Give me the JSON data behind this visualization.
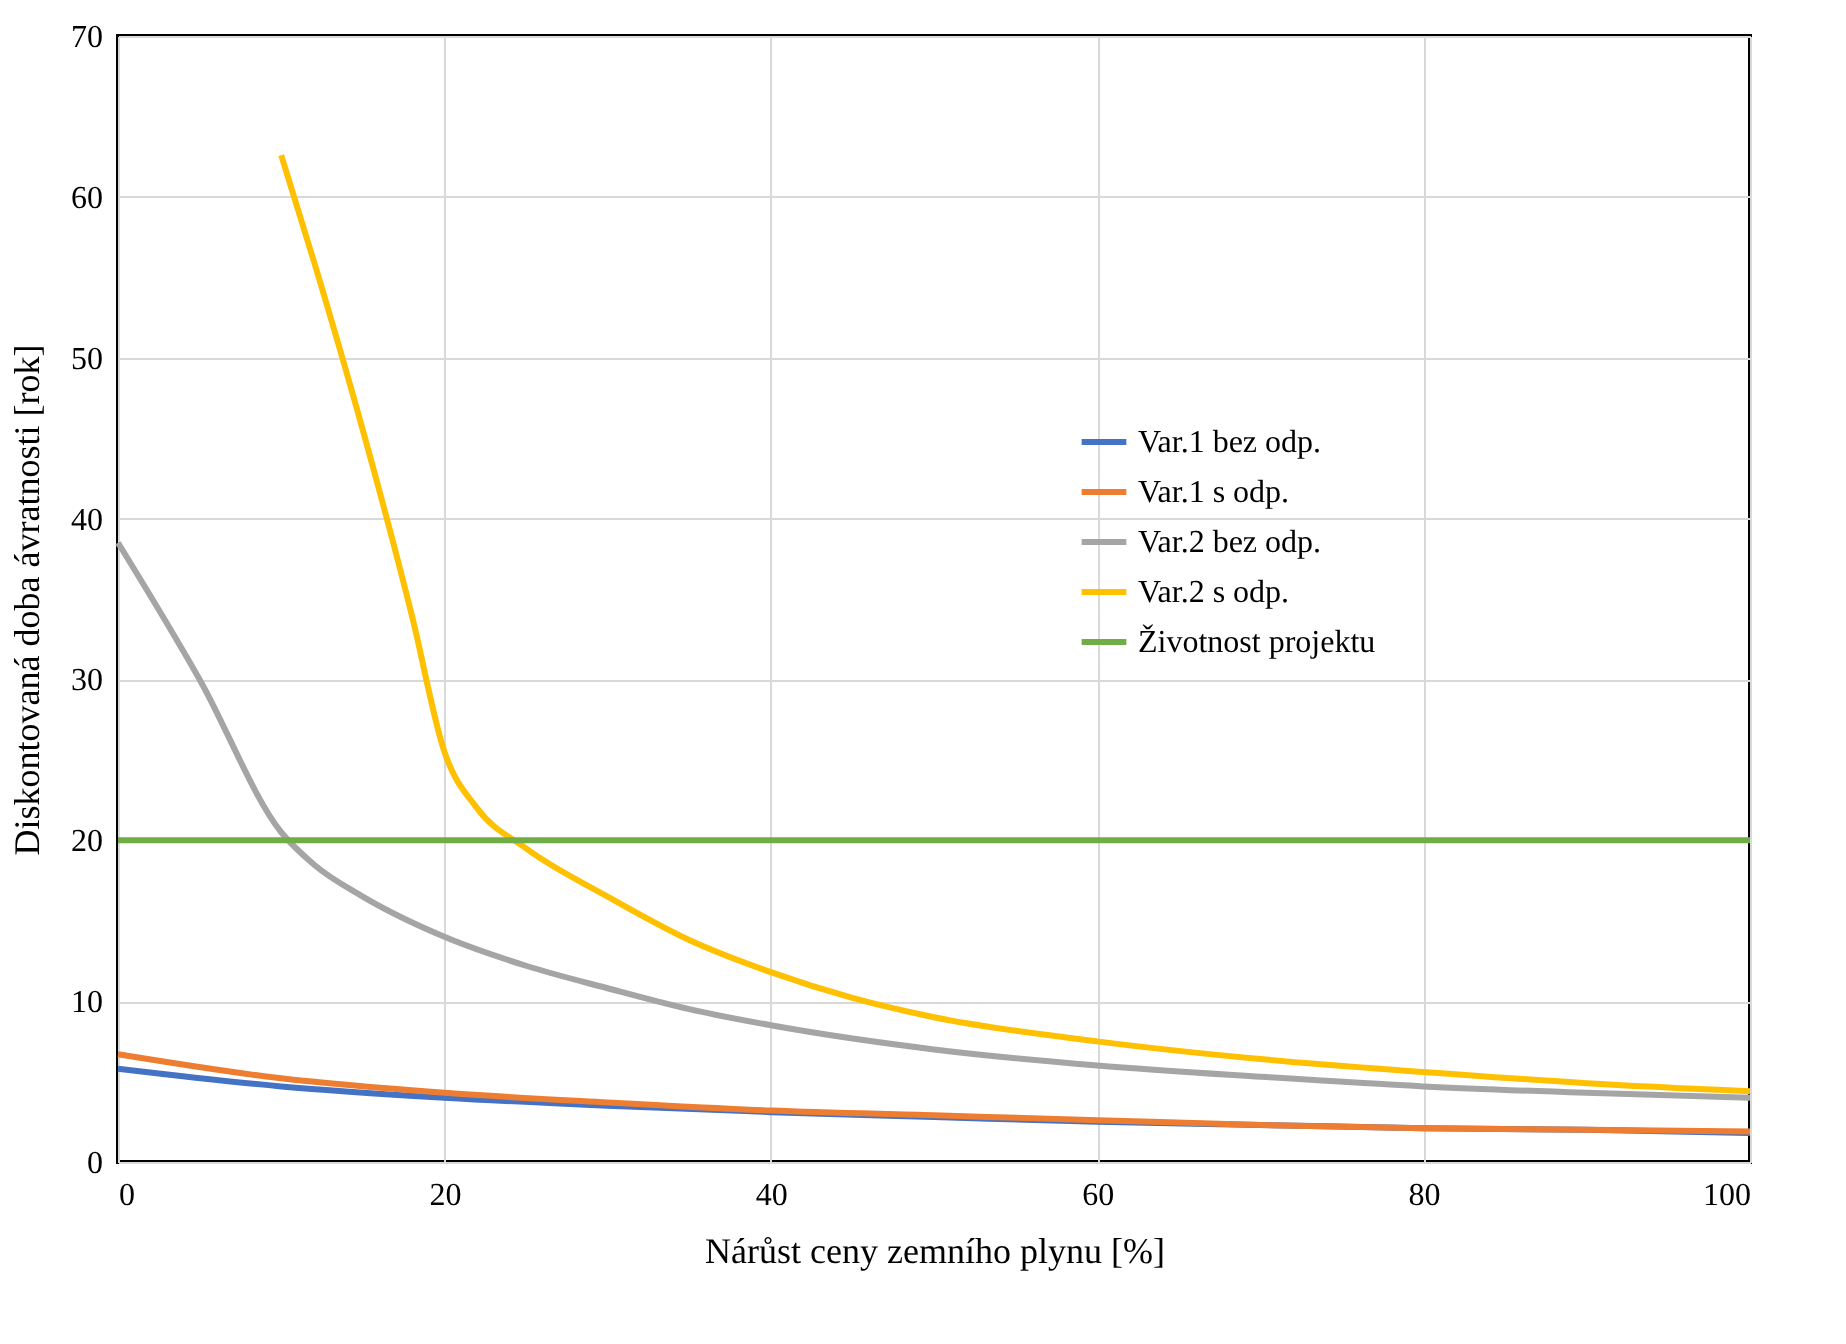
{
  "chart_data": {
    "type": "line",
    "xlabel": "Nárůst ceny zemního plynu [%]",
    "ylabel": "Diskontovaná doba ávratnosti [rok]",
    "xlim": [
      0,
      100
    ],
    "xticks": [
      0,
      20,
      40,
      60,
      80,
      100
    ],
    "ylim": [
      0,
      70
    ],
    "yticks": [
      0,
      10,
      20,
      30,
      40,
      50,
      60,
      70
    ],
    "grid": true,
    "legend": "right",
    "marker": "none",
    "line_style": "solid",
    "series": [
      {
        "name": "Var.1 bez odp.",
        "color": "#4472c4",
        "x": [
          0,
          10,
          20,
          30,
          40,
          50,
          60,
          70,
          80,
          90,
          100
        ],
        "values": [
          5.8,
          4.7,
          4.0,
          3.5,
          3.1,
          2.8,
          2.5,
          2.3,
          2.1,
          2.0,
          1.8
        ]
      },
      {
        "name": "Var.1 s odp.",
        "color": "#ed7d31",
        "x": [
          0,
          10,
          20,
          30,
          40,
          50,
          60,
          70,
          80,
          90,
          100
        ],
        "values": [
          6.7,
          5.2,
          4.3,
          3.7,
          3.2,
          2.9,
          2.6,
          2.3,
          2.1,
          2.0,
          1.9
        ]
      },
      {
        "name": "Var.2 bez odp.",
        "color": "#a5a5a5",
        "x": [
          0,
          5,
          10,
          12,
          15,
          20,
          25,
          30,
          35,
          40,
          50,
          60,
          70,
          80,
          90,
          100
        ],
        "values": [
          38.5,
          30,
          20.5,
          18.5,
          16.5,
          14,
          12.2,
          10.8,
          9.5,
          8.5,
          7.0,
          6.0,
          5.3,
          4.7,
          4.3,
          4.0
        ]
      },
      {
        "name": "Var.2 s odp.",
        "color": "#ffc000",
        "x": [
          10,
          12,
          15,
          18,
          20,
          22,
          25,
          30,
          35,
          40,
          45,
          50,
          60,
          70,
          80,
          90,
          100
        ],
        "values": [
          62.6,
          56,
          45.5,
          34,
          25.5,
          22,
          19.5,
          16.5,
          13.8,
          11.8,
          10.2,
          9.0,
          7.5,
          6.4,
          5.6,
          4.9,
          4.4
        ]
      },
      {
        "name": "Životnost projektu",
        "color": "#70ad47",
        "x": [
          0,
          100
        ],
        "values": [
          20,
          20
        ]
      }
    ]
  }
}
